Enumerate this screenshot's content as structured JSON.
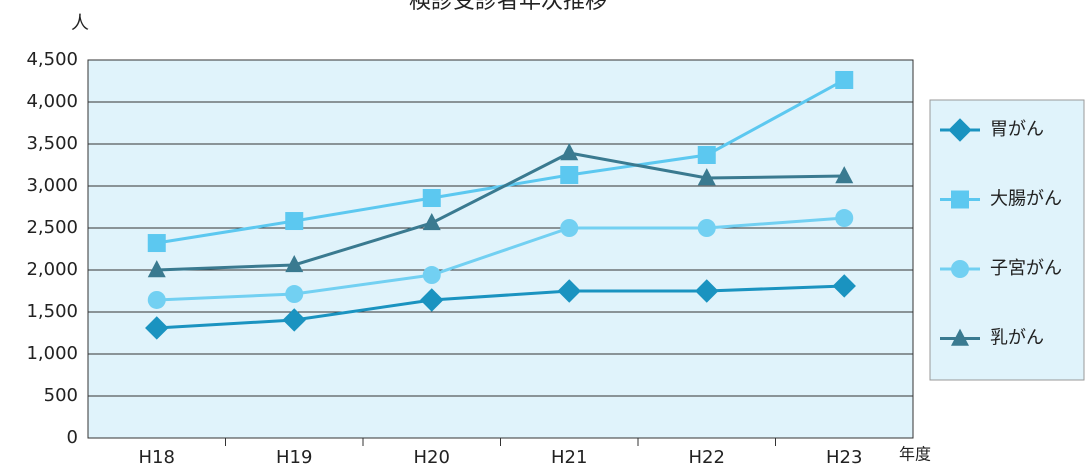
{
  "chart_data": {
    "type": "line",
    "title": "検診受診者年次推移",
    "y_label": "人",
    "x_label": "年度",
    "categories": [
      "H18",
      "H19",
      "H20",
      "H21",
      "H22",
      "H23"
    ],
    "series": [
      {
        "name": "胃がん",
        "color": "#1a93c0",
        "marker": "diamond",
        "values": [
          1310,
          1405,
          1643,
          1750,
          1750,
          1810
        ]
      },
      {
        "name": "大腸がん",
        "color": "#5cc8f0",
        "marker": "square",
        "values": [
          2321,
          2583,
          2857,
          3131,
          3369,
          4262
        ]
      },
      {
        "name": "子宮がん",
        "color": "#72d0f2",
        "marker": "circle",
        "values": [
          1643,
          1714,
          1940,
          2500,
          2500,
          2619
        ]
      },
      {
        "name": "乳がん",
        "color": "#3a7a90",
        "marker": "triangle",
        "values": [
          2000,
          2060,
          2560,
          3393,
          3095,
          3119
        ]
      }
    ],
    "ylim": [
      0,
      4500
    ],
    "yticks": [
      0,
      500,
      {
        "value": 1000,
        "label": "1,000"
      },
      {
        "value": 1500,
        "label": "1,500"
      },
      {
        "value": 2000,
        "label": "2,000"
      },
      {
        "value": 2500,
        "label": "2,500"
      },
      {
        "value": 3000,
        "label": "3,000"
      },
      {
        "value": 3500,
        "label": "3,500"
      },
      {
        "value": 4000,
        "label": "4,000"
      },
      {
        "value": 4500,
        "label": "4,500"
      }
    ],
    "grid": true,
    "legend": "right",
    "plot_background": "#e0f3fb"
  }
}
